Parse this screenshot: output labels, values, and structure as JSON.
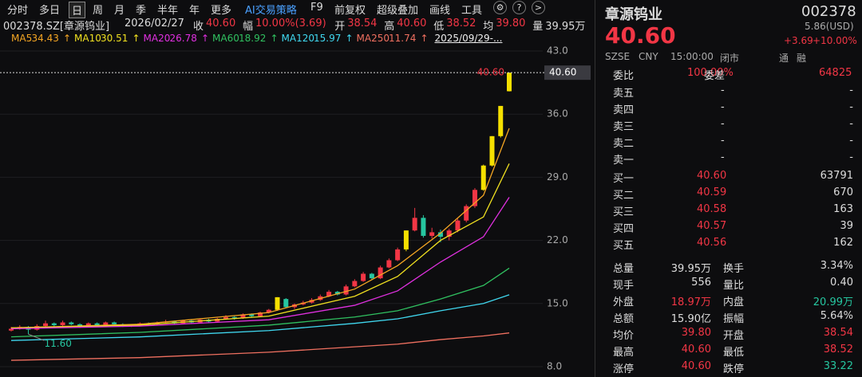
{
  "toolbar": {
    "items": [
      "分时",
      "多日",
      "日",
      "周",
      "月",
      "季",
      "半年",
      "年",
      "更多"
    ],
    "selected": 2,
    "tools": [
      "AI交易策略",
      "F9",
      "前复权",
      "超级叠加",
      "画线",
      "工具"
    ],
    "icons": [
      "⚙",
      "?",
      ">"
    ]
  },
  "quote": {
    "code": "002378.SZ[章源钨业]",
    "date": "2026/02/27",
    "fields": [
      [
        "收",
        "40.60"
      ],
      [
        "幅",
        "10.00%(3.69)"
      ],
      [
        "开",
        "38.54"
      ],
      [
        "高",
        "40.60"
      ],
      [
        "低",
        "38.52"
      ],
      [
        "均",
        "39.80"
      ],
      [
        "量",
        "39.95万"
      ]
    ]
  },
  "ma_legend": {
    "items": [
      {
        "name": "MA5",
        "value": "34.43",
        "arrow": "↑",
        "color": "#f5a623"
      },
      {
        "name": "MA10",
        "value": "30.51",
        "arrow": "↑",
        "color": "#f0e020"
      },
      {
        "name": "MA20",
        "value": "26.78",
        "arrow": "↑",
        "color": "#e030e0"
      },
      {
        "name": "MA60",
        "value": "18.92",
        "arrow": "↑",
        "color": "#30c060"
      },
      {
        "name": "MA120",
        "value": "15.97",
        "arrow": "↑",
        "color": "#40d8f0"
      },
      {
        "name": "MA250",
        "value": "11.74",
        "arrow": "↑",
        "color": "#f07060"
      }
    ],
    "range": "2025/09/29-..."
  },
  "chart": {
    "ylim": [
      8,
      43
    ],
    "yticks": [
      {
        "value": 43,
        "label": "43.0"
      },
      {
        "value": 36,
        "label": "36.0"
      },
      {
        "value": 29,
        "label": "29.0"
      },
      {
        "value": 22,
        "label": "22.0"
      },
      {
        "value": 15,
        "label": "15.0"
      },
      {
        "value": 8,
        "label": "8.0"
      }
    ],
    "last": {
      "value": 40.6,
      "label": "40.60"
    },
    "low": {
      "value": 11.6,
      "label": "11.60"
    },
    "up_color": "#f23645",
    "down_color": "#26c6a0",
    "limit_color": "#f5e000",
    "candles": [
      [
        12.0,
        12.4,
        11.9,
        12.2
      ],
      [
        12.2,
        12.6,
        12.1,
        12.4
      ],
      [
        12.4,
        12.5,
        11.6,
        12.1
      ],
      [
        12.1,
        12.7,
        12.0,
        12.5
      ],
      [
        12.5,
        13.1,
        12.4,
        12.8
      ],
      [
        12.8,
        12.9,
        12.4,
        12.6
      ],
      [
        12.6,
        13.1,
        12.5,
        12.9
      ],
      [
        12.9,
        13.0,
        12.6,
        12.7
      ],
      [
        12.7,
        12.8,
        12.3,
        12.5
      ],
      [
        12.5,
        12.9,
        12.4,
        12.8
      ],
      [
        12.8,
        12.9,
        12.5,
        12.6
      ],
      [
        12.6,
        13.0,
        12.5,
        12.9
      ],
      [
        12.9,
        13.0,
        12.6,
        12.7
      ],
      [
        12.7,
        12.8,
        12.4,
        12.5
      ],
      [
        12.5,
        12.7,
        12.4,
        12.6
      ],
      [
        12.6,
        12.9,
        12.5,
        12.8
      ],
      [
        12.8,
        12.9,
        12.6,
        12.7
      ],
      [
        12.7,
        13.0,
        12.6,
        12.9
      ],
      [
        12.9,
        13.2,
        12.8,
        13.0
      ],
      [
        13.0,
        13.1,
        12.7,
        12.8
      ],
      [
        12.8,
        13.2,
        12.7,
        13.1
      ],
      [
        13.1,
        13.2,
        12.8,
        12.9
      ],
      [
        12.9,
        13.3,
        12.8,
        13.2
      ],
      [
        13.2,
        13.3,
        12.9,
        13.0
      ],
      [
        13.0,
        13.4,
        12.9,
        13.3
      ],
      [
        13.3,
        13.7,
        13.2,
        13.5
      ],
      [
        13.5,
        13.6,
        13.2,
        13.4
      ],
      [
        13.4,
        13.9,
        13.3,
        13.8
      ],
      [
        13.8,
        13.9,
        13.5,
        13.6
      ],
      [
        13.6,
        14.1,
        13.5,
        14.0
      ],
      [
        14.0,
        14.4,
        13.9,
        14.3
      ],
      [
        14.3,
        15.7,
        14.2,
        15.7
      ],
      [
        15.5,
        15.6,
        14.5,
        14.6
      ],
      [
        14.6,
        15.0,
        14.4,
        14.9
      ],
      [
        14.9,
        15.3,
        14.8,
        15.1
      ],
      [
        15.1,
        15.6,
        15.0,
        15.4
      ],
      [
        15.4,
        16.0,
        15.3,
        15.8
      ],
      [
        15.8,
        16.5,
        15.7,
        16.3
      ],
      [
        16.3,
        16.4,
        15.9,
        16.0
      ],
      [
        16.0,
        17.1,
        15.9,
        16.9
      ],
      [
        16.9,
        17.7,
        16.8,
        17.5
      ],
      [
        17.5,
        18.5,
        17.4,
        18.3
      ],
      [
        18.3,
        18.4,
        17.6,
        17.8
      ],
      [
        17.8,
        19.2,
        17.7,
        19.0
      ],
      [
        19.0,
        20.0,
        18.9,
        19.8
      ],
      [
        19.8,
        21.2,
        19.7,
        21.0
      ],
      [
        21.0,
        23.1,
        20.8,
        23.1
      ],
      [
        23.1,
        25.6,
        23.0,
        24.5
      ],
      [
        24.5,
        24.8,
        22.3,
        22.5
      ],
      [
        22.5,
        23.4,
        22.2,
        22.9
      ],
      [
        22.9,
        23.2,
        21.8,
        22.4
      ],
      [
        22.4,
        23.3,
        22.0,
        23.1
      ],
      [
        23.1,
        24.4,
        22.9,
        24.2
      ],
      [
        24.2,
        26.0,
        24.0,
        25.8
      ],
      [
        25.8,
        27.8,
        25.6,
        27.6
      ],
      [
        27.6,
        30.4,
        27.5,
        30.3
      ],
      [
        30.3,
        33.56,
        30.2,
        33.56
      ],
      [
        33.56,
        36.91,
        33.4,
        36.91
      ],
      [
        38.54,
        40.6,
        38.52,
        40.6
      ]
    ],
    "ma": {
      "x": [
        0,
        15,
        30,
        40,
        45,
        50,
        55,
        58
      ],
      "series": [
        {
          "color": "#f5a623",
          "values": [
            12.3,
            12.7,
            14.0,
            16.6,
            19.2,
            22.8,
            27.0,
            34.43
          ]
        },
        {
          "color": "#f0e020",
          "values": [
            12.3,
            12.6,
            13.6,
            15.8,
            18.0,
            22.0,
            24.6,
            30.51
          ]
        },
        {
          "color": "#e030e0",
          "values": [
            12.2,
            12.5,
            13.2,
            14.8,
            16.4,
            19.6,
            22.4,
            26.78
          ]
        },
        {
          "color": "#30c060",
          "values": [
            11.3,
            11.8,
            12.6,
            13.5,
            14.2,
            15.5,
            17.0,
            18.92
          ]
        },
        {
          "color": "#40d8f0",
          "values": [
            10.9,
            11.3,
            12.0,
            12.8,
            13.3,
            14.2,
            15.0,
            15.97
          ]
        },
        {
          "color": "#f07060",
          "values": [
            8.7,
            9.0,
            9.6,
            10.2,
            10.5,
            11.0,
            11.4,
            11.74
          ]
        }
      ]
    }
  },
  "panel": {
    "name": "章源钨业",
    "code": "002378",
    "price": "40.60",
    "usd": "5.86(USD)",
    "change": "+3.69",
    "pct": "+10.00%",
    "market": "SZSE",
    "currency": "CNY",
    "time": "15:00:00",
    "status": "闭市",
    "tags": [
      "通",
      "融"
    ],
    "commission": [
      "委比",
      "100.00%",
      "委差",
      "64825"
    ],
    "book": [
      [
        "卖五",
        "-",
        "-"
      ],
      [
        "卖四",
        "-",
        "-"
      ],
      [
        "卖三",
        "-",
        "-"
      ],
      [
        "卖二",
        "-",
        "-"
      ],
      [
        "卖一",
        "-",
        "-"
      ],
      [
        "买一",
        "40.60",
        "63791"
      ],
      [
        "买二",
        "40.59",
        "670"
      ],
      [
        "买三",
        "40.58",
        "163"
      ],
      [
        "买四",
        "40.57",
        "39"
      ],
      [
        "买五",
        "40.56",
        "162"
      ]
    ],
    "stats": [
      [
        "总量",
        "39.95万",
        "换手",
        "3.34%"
      ],
      [
        "现手",
        "556",
        "量比",
        "0.40"
      ],
      [
        "外盘",
        "18.97万",
        "内盘",
        "20.99万"
      ],
      [
        "总额",
        "15.90亿",
        "振幅",
        "5.64%"
      ],
      [
        "均价",
        "39.80",
        "开盘",
        "38.54"
      ],
      [
        "最高",
        "40.60",
        "最低",
        "38.52"
      ],
      [
        "涨停",
        "40.60",
        "跌停",
        "33.22"
      ]
    ]
  }
}
